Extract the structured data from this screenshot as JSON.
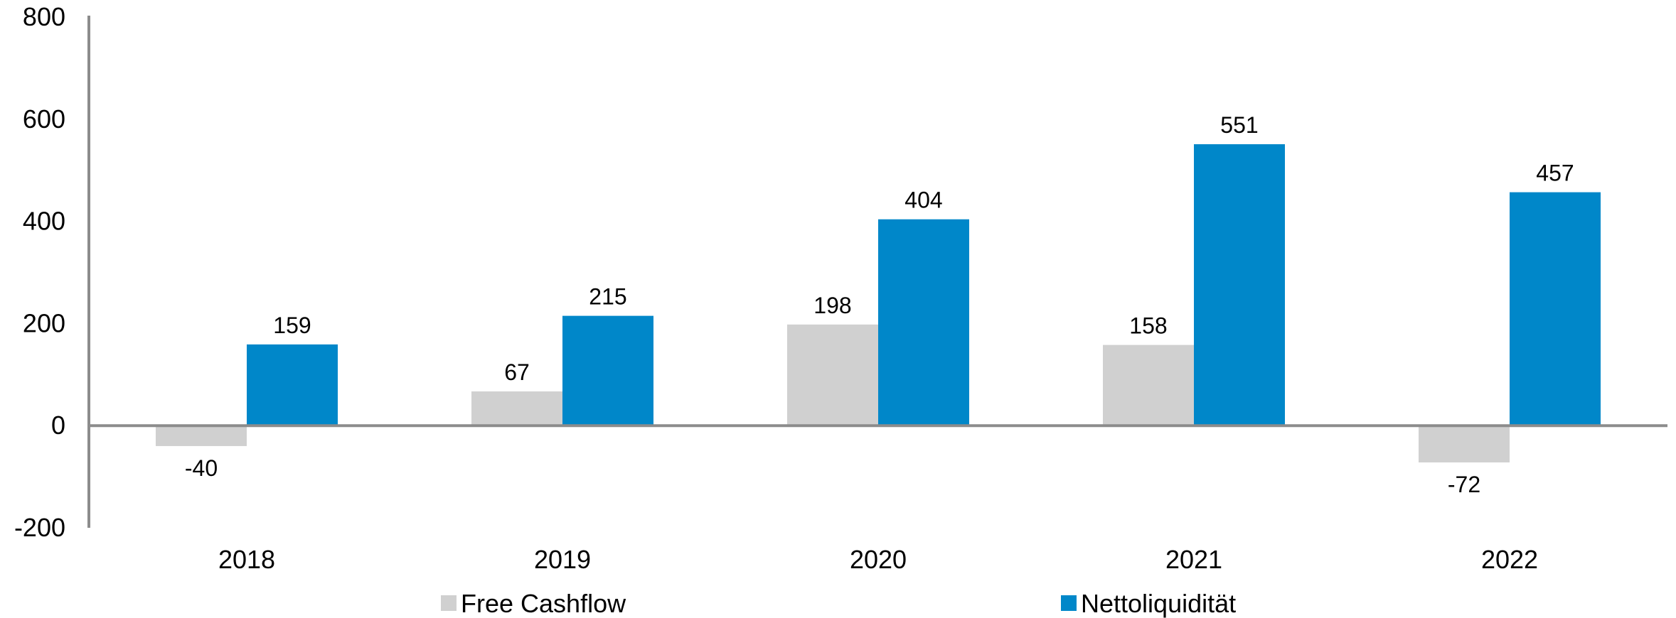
{
  "chart_data": {
    "type": "bar",
    "title": "",
    "xlabel": "",
    "ylabel": "",
    "categories": [
      "2018",
      "2019",
      "2020",
      "2021",
      "2022"
    ],
    "series": [
      {
        "name": "Free Cashflow",
        "values": [
          -40,
          67,
          198,
          158,
          -72
        ],
        "color": "#d0d0d0"
      },
      {
        "name": "Nettoliquidität",
        "values": [
          159,
          215,
          404,
          551,
          457
        ],
        "color": "#0087c9"
      }
    ],
    "ylim": [
      -200,
      800
    ],
    "yticks": [
      "800",
      "600",
      "400",
      "200",
      "0",
      "-200"
    ],
    "grid": false,
    "legend": "bottom"
  }
}
